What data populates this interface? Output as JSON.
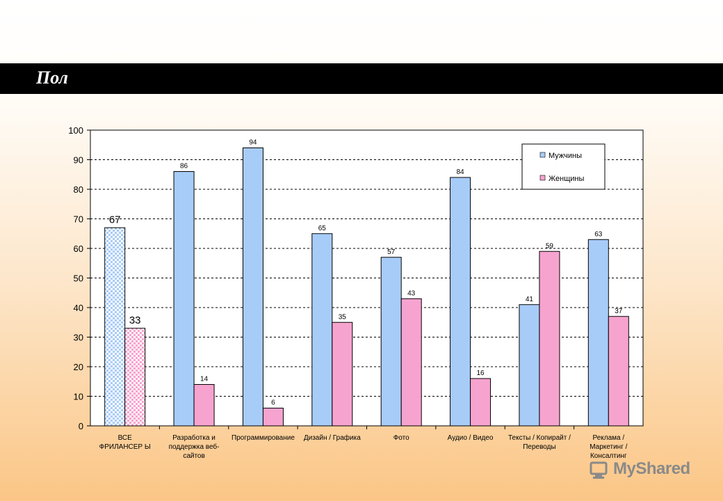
{
  "slide": {
    "title": "Пол"
  },
  "watermark": {
    "text": "MyShared"
  },
  "chart_data": {
    "type": "bar",
    "title": "",
    "xlabel": "",
    "ylabel": "",
    "ylim": [
      0,
      100
    ],
    "yticks": [
      0,
      10,
      20,
      30,
      40,
      50,
      60,
      70,
      80,
      90,
      100
    ],
    "grid": true,
    "legend_position": "top-right",
    "categories": [
      [
        "ВСЕ",
        "ФРИЛАНСЕР Ы"
      ],
      [
        "Разработка и",
        "поддержка веб-",
        "сайтов"
      ],
      [
        "Программирование"
      ],
      [
        "Дизайн / Графика"
      ],
      [
        "Фото"
      ],
      [
        "Аудио / Видео"
      ],
      [
        "Тексты / Копирайт /",
        "Переводы"
      ],
      [
        "Реклама /",
        "Маркетинг /",
        "Консалтинг"
      ]
    ],
    "series": [
      {
        "name": "Мужчины",
        "color": "#a8ccf8",
        "values": [
          67,
          86,
          94,
          65,
          57,
          84,
          41,
          63
        ]
      },
      {
        "name": "Женщины",
        "color": "#f7a3cf",
        "values": [
          33,
          14,
          6,
          35,
          43,
          16,
          59,
          37
        ]
      }
    ],
    "highlight_first_category": true
  }
}
